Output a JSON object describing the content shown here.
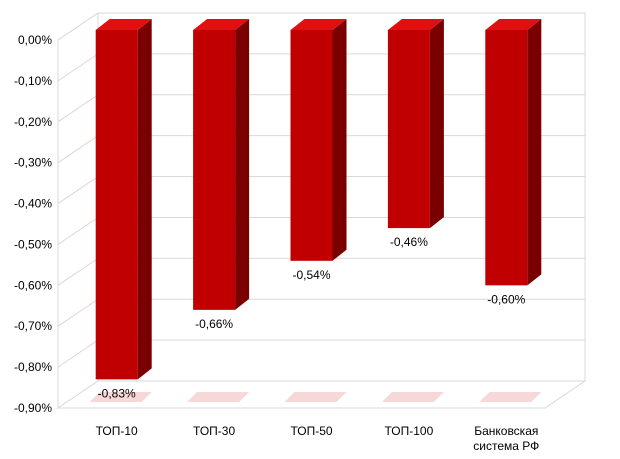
{
  "chart_data": {
    "type": "bar",
    "categories": [
      "ТОП-10",
      "ТОП-30",
      "ТОП-50",
      "ТОП-100",
      "Банковская система РФ"
    ],
    "category_lines": [
      [
        "ТОП-10"
      ],
      [
        "ТОП-30"
      ],
      [
        "ТОП-50"
      ],
      [
        "ТОП-100"
      ],
      [
        "Банковская",
        "система РФ"
      ]
    ],
    "values": [
      -0.83,
      -0.66,
      -0.54,
      -0.46,
      -0.6
    ],
    "value_labels": [
      "-0,83%",
      "-0,66%",
      "-0,54%",
      "-0,46%",
      "-0,60%"
    ],
    "yticks": [
      "0,00%",
      "-0,10%",
      "-0,20%",
      "-0,30%",
      "-0,40%",
      "-0,50%",
      "-0,60%",
      "-0,70%",
      "-0,80%",
      "-0,90%"
    ],
    "ylim": [
      -0.9,
      0
    ],
    "grid": true,
    "style": "3d-column",
    "colors": {
      "bar_front": "#c00000",
      "bar_side": "#7a0000",
      "bar_top": "#e01010",
      "grid": "#d9d9d9",
      "floor_shadow": "#f4c8c8"
    }
  }
}
